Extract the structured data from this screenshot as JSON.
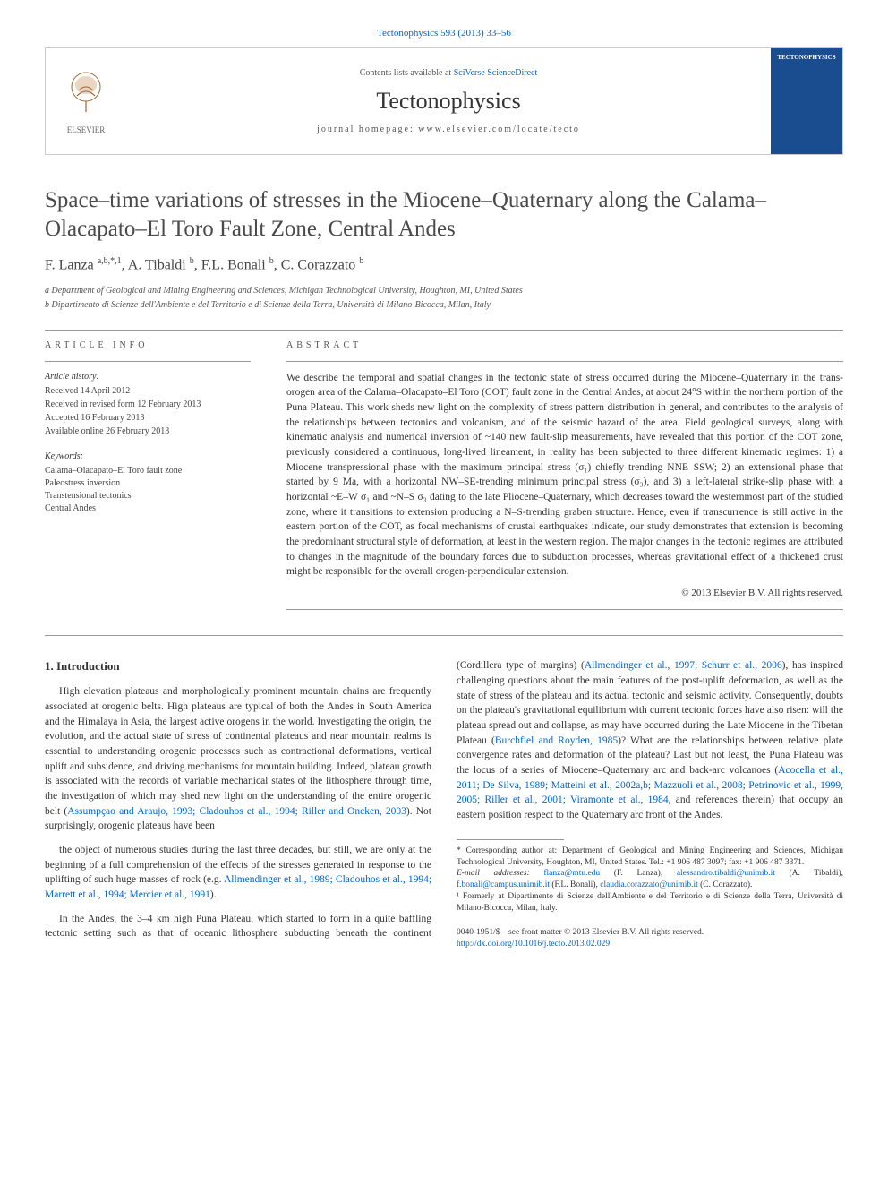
{
  "journal_ref": "Tectonophysics 593 (2013) 33–56",
  "header": {
    "contents_prefix": "Contents lists available at ",
    "contents_link": "SciVerse ScienceDirect",
    "journal_name": "Tectonophysics",
    "homepage_prefix": "journal homepage: ",
    "homepage_url": "www.elsevier.com/locate/tecto",
    "publisher": "ELSEVIER",
    "cover_label": "TECTONOPHYSICS"
  },
  "title": "Space–time variations of stresses in the Miocene–Quaternary along the Calama–Olacapato–El Toro Fault Zone, Central Andes",
  "authors_html": "F. Lanza <sup>a,b,*,1</sup>, A. Tibaldi <sup>b</sup>, F.L. Bonali <sup>b</sup>, C. Corazzato <sup>b</sup>",
  "affiliations": [
    "a Department of Geological and Mining Engineering and Sciences, Michigan Technological University, Houghton, MI, United States",
    "b Dipartimento di Scienze dell'Ambiente e del Territorio e di Scienze della Terra, Università di Milano-Bicocca, Milan, Italy"
  ],
  "article_info_heading": "ARTICLE INFO",
  "abstract_heading": "ABSTRACT",
  "history": {
    "label": "Article history:",
    "items": [
      "Received 14 April 2012",
      "Received in revised form 12 February 2013",
      "Accepted 16 February 2013",
      "Available online 26 February 2013"
    ]
  },
  "keywords": {
    "label": "Keywords:",
    "items": [
      "Calama–Olacapato–El Toro fault zone",
      "Paleostress inversion",
      "Transtensional tectonics",
      "Central Andes"
    ]
  },
  "abstract": "We describe the temporal and spatial changes in the tectonic state of stress occurred during the Miocene–Quaternary in the trans-orogen area of the Calama–Olacapato–El Toro (COT) fault zone in the Central Andes, at about 24°S within the northern portion of the Puna Plateau. This work sheds new light on the complexity of stress pattern distribution in general, and contributes to the analysis of the relationships between tectonics and volcanism, and of the seismic hazard of the area. Field geological surveys, along with kinematic analysis and numerical inversion of ~140 new fault-slip measurements, have revealed that this portion of the COT zone, previously considered a continuous, long-lived lineament, in reality has been subjected to three different kinematic regimes: 1) a Miocene transpressional phase with the maximum principal stress (σ₁) chiefly trending NNE–SSW; 2) an extensional phase that started by 9 Ma, with a horizontal NW–SE-trending minimum principal stress (σ₃), and 3) a left-lateral strike-slip phase with a horizontal ~E–W σ₁ and ~N–S σ₃ dating to the late Pliocene–Quaternary, which decreases toward the westernmost part of the studied zone, where it transitions to extension producing a N–S-trending graben structure. Hence, even if transcurrence is still active in the eastern portion of the COT, as focal mechanisms of crustal earthquakes indicate, our study demonstrates that extension is becoming the predominant structural style of deformation, at least in the western region. The major changes in the tectonic regimes are attributed to changes in the magnitude of the boundary forces due to subduction processes, whereas gravitational effect of a thickened crust might be responsible for the overall orogen-perpendicular extension.",
  "copyright": "© 2013 Elsevier B.V. All rights reserved.",
  "section_heading": "1. Introduction",
  "paragraphs": [
    "High elevation plateaus and morphologically prominent mountain chains are frequently associated at orogenic belts. High plateaus are typical of both the Andes in South America and the Himalaya in Asia, the largest active orogens in the world. Investigating the origin, the evolution, and the actual state of stress of continental plateaus and near mountain realms is essential to understanding orogenic processes such as contractional deformations, vertical uplift and subsidence, and driving mechanisms for mountain building. Indeed, plateau growth is associated with the records of variable mechanical states of the lithosphere through time, the investigation of which may shed new light on the understanding of the entire orogenic belt (<span class=\"ref-link\">Assumpçao and Araujo, 1993; Cladouhos et al., 1994; Riller and Oncken, 2003</span>). Not surprisingly, orogenic plateaus have been",
    "the object of numerous studies during the last three decades, but still, we are only at the beginning of a full comprehension of the effects of the stresses generated in response to the uplifting of such huge masses of rock (e.g. <span class=\"ref-link\">Allmendinger et al., 1989; Cladouhos et al., 1994; Marrett et al., 1994; Mercier et al., 1991</span>).",
    "In the Andes, the 3–4 km high Puna Plateau, which started to form in a quite baffling tectonic setting such as that of oceanic lithosphere subducting beneath the continent (Cordillera type of margins) (<span class=\"ref-link\">Allmendinger et al., 1997; Schurr et al., 2006</span>), has inspired challenging questions about the main features of the post-uplift deformation, as well as the state of stress of the plateau and its actual tectonic and seismic activity. Consequently, doubts on the plateau's gravitational equilibrium with current tectonic forces have also risen: will the plateau spread out and collapse, as may have occurred during the Late Miocene in the Tibetan Plateau (<span class=\"ref-link\">Burchfiel and Royden, 1985</span>)? What are the relationships between relative plate convergence rates and deformation of the plateau? Last but not least, the Puna Plateau was the locus of a series of Miocene–Quaternary arc and back-arc volcanoes (<span class=\"ref-link\">Acocella et al., 2011; De Silva, 1989; Matteini et al., 2002a,b; Mazzuoli et al., 2008; Petrinovic et al., 1999, 2005; Riller et al., 2001; Viramonte et al., 1984</span>, and references therein) that occupy an eastern position respect to the Quaternary arc front of the Andes."
  ],
  "footnotes": {
    "corresponding": "* Corresponding author at: Department of Geological and Mining Engineering and Sciences, Michigan Technological University, Houghton, MI, United States. Tel.: +1 906 487 3097; fax: +1 906 487 3371.",
    "emails_label": "E-mail addresses: ",
    "emails": [
      {
        "addr": "flanza@mtu.edu",
        "who": "(F. Lanza)"
      },
      {
        "addr": "alessandro.tibaldi@unimib.it",
        "who": "(A. Tibaldi)"
      },
      {
        "addr": "f.bonali@campus.unimib.it",
        "who": "(F.L. Bonali)"
      },
      {
        "addr": "claudia.corazzato@unimib.it",
        "who": "(C. Corazzato)."
      }
    ],
    "formerly": "¹ Formerly at Dipartimento di Scienze dell'Ambiente e del Territorio e di Scienze della Terra, Università di Milano-Bicocca, Milan, Italy."
  },
  "footer": {
    "line1": "0040-1951/$ – see front matter © 2013 Elsevier B.V. All rights reserved.",
    "doi": "http://dx.doi.org/10.1016/j.tecto.2013.02.029"
  },
  "colors": {
    "link": "#0066cc",
    "text": "#333333",
    "muted": "#555555",
    "rule": "#999999",
    "cover_bg": "#1a4d8f"
  },
  "typography": {
    "body_pt": 11.5,
    "title_pt": 25,
    "journal_pt": 26,
    "meta_pt": 10,
    "footnote_pt": 9.5
  }
}
